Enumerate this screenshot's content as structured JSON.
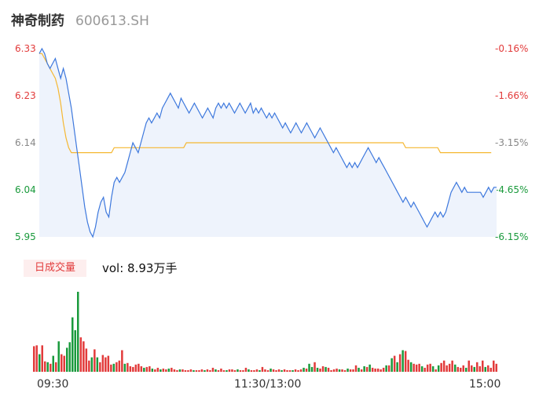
{
  "stock": {
    "name": "神奇制药",
    "code": "600613.SH"
  },
  "price_axis": {
    "left_labels": [
      "6.33",
      "6.23",
      "6.14",
      "6.04",
      "5.95"
    ],
    "right_labels": [
      "-0.16%",
      "-1.66%",
      "-3.15%",
      "-4.65%",
      "-6.15%"
    ],
    "up_color": "#e23b3b",
    "neutral_color": "#888888",
    "down_color": "#1a9a3c"
  },
  "volume": {
    "badge": "日成交量",
    "text": "vol: 8.93万手"
  },
  "time_labels": [
    "09:30",
    "11:30/13:00",
    "15:00"
  ],
  "chart_data": {
    "type": "line",
    "ylim": [
      5.95,
      6.33
    ],
    "series": [
      {
        "values": [
          6.32,
          6.33,
          6.32,
          6.3,
          6.29,
          6.3,
          6.31,
          6.29,
          6.27,
          6.29,
          6.27,
          6.24,
          6.21,
          6.17,
          6.13,
          6.09,
          6.05,
          6.01,
          5.98,
          5.96,
          5.95,
          5.97,
          6.0,
          6.02,
          6.03,
          6.0,
          5.99,
          6.03,
          6.06,
          6.07,
          6.06,
          6.07,
          6.08,
          6.1,
          6.12,
          6.14,
          6.13,
          6.12,
          6.14,
          6.16,
          6.18,
          6.19,
          6.18,
          6.19,
          6.2,
          6.19,
          6.21,
          6.22,
          6.23,
          6.24,
          6.23,
          6.22,
          6.21,
          6.23,
          6.22,
          6.21,
          6.2,
          6.21,
          6.22,
          6.21,
          6.2,
          6.19,
          6.2,
          6.21,
          6.2,
          6.19,
          6.21,
          6.22,
          6.21,
          6.22,
          6.21,
          6.22,
          6.21,
          6.2,
          6.21,
          6.22,
          6.21,
          6.2,
          6.21,
          6.22,
          6.2,
          6.21,
          6.2,
          6.21,
          6.2,
          6.19,
          6.2,
          6.19,
          6.2,
          6.19,
          6.18,
          6.17,
          6.18,
          6.17,
          6.16,
          6.17,
          6.18,
          6.17,
          6.16,
          6.17,
          6.18,
          6.17,
          6.16,
          6.15,
          6.16,
          6.17,
          6.16,
          6.15,
          6.14,
          6.13,
          6.12,
          6.13,
          6.12,
          6.11,
          6.1,
          6.09,
          6.1,
          6.09,
          6.1,
          6.09,
          6.1,
          6.11,
          6.12,
          6.13,
          6.12,
          6.11,
          6.1,
          6.11,
          6.1,
          6.09,
          6.08,
          6.07,
          6.06,
          6.05,
          6.04,
          6.03,
          6.02,
          6.03,
          6.02,
          6.01,
          6.02,
          6.01,
          6.0,
          5.99,
          5.98,
          5.97,
          5.98,
          5.99,
          6.0,
          5.99,
          6.0,
          5.99,
          6.0,
          6.02,
          6.04,
          6.05,
          6.06,
          6.05,
          6.04,
          6.05,
          6.04,
          6.04,
          6.04,
          6.04,
          6.04,
          6.04,
          6.03,
          6.04,
          6.05,
          6.04,
          6.05,
          6.05
        ]
      },
      {
        "values": [
          6.32,
          6.32,
          6.31,
          6.3,
          6.29,
          6.28,
          6.27,
          6.25,
          6.22,
          6.18,
          6.15,
          6.13,
          6.12,
          6.12,
          6.12,
          6.12,
          6.12,
          6.12,
          6.12,
          6.12,
          6.12,
          6.12,
          6.12,
          6.12,
          6.12,
          6.12,
          6.12,
          6.12,
          6.13,
          6.13,
          6.13,
          6.13,
          6.13,
          6.13,
          6.13,
          6.13,
          6.13,
          6.13,
          6.13,
          6.13,
          6.13,
          6.13,
          6.13,
          6.13,
          6.13,
          6.13,
          6.13,
          6.13,
          6.13,
          6.13,
          6.13,
          6.13,
          6.13,
          6.13,
          6.13,
          6.14,
          6.14,
          6.14,
          6.14,
          6.14,
          6.14,
          6.14,
          6.14,
          6.14,
          6.14,
          6.14,
          6.14,
          6.14,
          6.14,
          6.14,
          6.14,
          6.14,
          6.14,
          6.14,
          6.14,
          6.14,
          6.14,
          6.14,
          6.14,
          6.14,
          6.14,
          6.14,
          6.14,
          6.14,
          6.14,
          6.14,
          6.14,
          6.14,
          6.14,
          6.14,
          6.14,
          6.14,
          6.14,
          6.14,
          6.14,
          6.14,
          6.14,
          6.14,
          6.14,
          6.14,
          6.14,
          6.14,
          6.14,
          6.14,
          6.14,
          6.14,
          6.14,
          6.14,
          6.14,
          6.14,
          6.14,
          6.14,
          6.14,
          6.14,
          6.14,
          6.14,
          6.14,
          6.14,
          6.14,
          6.14,
          6.14,
          6.14,
          6.14,
          6.14,
          6.14,
          6.14,
          6.14,
          6.14,
          6.14,
          6.14,
          6.14,
          6.14,
          6.14,
          6.14,
          6.14,
          6.14,
          6.14,
          6.13,
          6.13,
          6.13,
          6.13,
          6.13,
          6.13,
          6.13,
          6.13,
          6.13,
          6.13,
          6.13,
          6.13,
          6.13,
          6.12,
          6.12,
          6.12,
          6.12,
          6.12,
          6.12,
          6.12,
          6.12,
          6.12,
          6.12,
          6.12,
          6.12,
          6.12,
          6.12,
          6.12,
          6.12,
          6.12,
          6.12,
          6.12,
          6.12
        ]
      }
    ],
    "volume_bars": [
      {
        "v": 0.32,
        "up": 1
      },
      {
        "v": 0.33,
        "up": 1
      },
      {
        "v": 0.22,
        "up": 0
      },
      {
        "v": 0.33,
        "up": 1
      },
      {
        "v": 0.13,
        "up": 1
      },
      {
        "v": 0.12,
        "up": 0
      },
      {
        "v": 0.1,
        "up": 1
      },
      {
        "v": 0.2,
        "up": 0
      },
      {
        "v": 0.12,
        "up": 1
      },
      {
        "v": 0.38,
        "up": 0
      },
      {
        "v": 0.22,
        "up": 1
      },
      {
        "v": 0.2,
        "up": 1
      },
      {
        "v": 0.3,
        "up": 0
      },
      {
        "v": 0.37,
        "up": 0
      },
      {
        "v": 0.68,
        "up": 0
      },
      {
        "v": 0.52,
        "up": 0
      },
      {
        "v": 1.0,
        "up": 0
      },
      {
        "v": 0.43,
        "up": 1
      },
      {
        "v": 0.38,
        "up": 1
      },
      {
        "v": 0.29,
        "up": 1
      },
      {
        "v": 0.14,
        "up": 1
      },
      {
        "v": 0.18,
        "up": 0
      },
      {
        "v": 0.28,
        "up": 1
      },
      {
        "v": 0.18,
        "up": 0
      },
      {
        "v": 0.12,
        "up": 1
      },
      {
        "v": 0.21,
        "up": 1
      },
      {
        "v": 0.18,
        "up": 1
      },
      {
        "v": 0.2,
        "up": 1
      },
      {
        "v": 0.09,
        "up": 1
      },
      {
        "v": 0.1,
        "up": 0
      },
      {
        "v": 0.12,
        "up": 1
      },
      {
        "v": 0.14,
        "up": 1
      },
      {
        "v": 0.27,
        "up": 1
      },
      {
        "v": 0.1,
        "up": 0
      },
      {
        "v": 0.11,
        "up": 1
      },
      {
        "v": 0.07,
        "up": 1
      },
      {
        "v": 0.06,
        "up": 1
      },
      {
        "v": 0.09,
        "up": 1
      },
      {
        "v": 0.1,
        "up": 1
      },
      {
        "v": 0.07,
        "up": 1
      },
      {
        "v": 0.05,
        "up": 0
      },
      {
        "v": 0.06,
        "up": 1
      },
      {
        "v": 0.07,
        "up": 1
      },
      {
        "v": 0.04,
        "up": 0
      },
      {
        "v": 0.03,
        "up": 1
      },
      {
        "v": 0.05,
        "up": 1
      },
      {
        "v": 0.03,
        "up": 0
      },
      {
        "v": 0.04,
        "up": 1
      },
      {
        "v": 0.03,
        "up": 1
      },
      {
        "v": 0.04,
        "up": 0
      },
      {
        "v": 0.05,
        "up": 1
      },
      {
        "v": 0.03,
        "up": 1
      },
      {
        "v": 0.02,
        "up": 1
      },
      {
        "v": 0.03,
        "up": 0
      },
      {
        "v": 0.03,
        "up": 1
      },
      {
        "v": 0.02,
        "up": 1
      },
      {
        "v": 0.02,
        "up": 1
      },
      {
        "v": 0.03,
        "up": 1
      },
      {
        "v": 0.02,
        "up": 0
      },
      {
        "v": 0.02,
        "up": 1
      },
      {
        "v": 0.02,
        "up": 1
      },
      {
        "v": 0.03,
        "up": 1
      },
      {
        "v": 0.02,
        "up": 0
      },
      {
        "v": 0.03,
        "up": 1
      },
      {
        "v": 0.02,
        "up": 1
      },
      {
        "v": 0.05,
        "up": 1
      },
      {
        "v": 0.03,
        "up": 0
      },
      {
        "v": 0.02,
        "up": 1
      },
      {
        "v": 0.04,
        "up": 1
      },
      {
        "v": 0.02,
        "up": 1
      },
      {
        "v": 0.02,
        "up": 0
      },
      {
        "v": 0.03,
        "up": 1
      },
      {
        "v": 0.03,
        "up": 1
      },
      {
        "v": 0.02,
        "up": 1
      },
      {
        "v": 0.03,
        "up": 0
      },
      {
        "v": 0.02,
        "up": 1
      },
      {
        "v": 0.02,
        "up": 1
      },
      {
        "v": 0.05,
        "up": 1
      },
      {
        "v": 0.03,
        "up": 0
      },
      {
        "v": 0.02,
        "up": 1
      },
      {
        "v": 0.02,
        "up": 1
      },
      {
        "v": 0.03,
        "up": 1
      },
      {
        "v": 0.02,
        "up": 0
      },
      {
        "v": 0.06,
        "up": 1
      },
      {
        "v": 0.03,
        "up": 1
      },
      {
        "v": 0.02,
        "up": 1
      },
      {
        "v": 0.04,
        "up": 0
      },
      {
        "v": 0.03,
        "up": 1
      },
      {
        "v": 0.02,
        "up": 1
      },
      {
        "v": 0.03,
        "up": 1
      },
      {
        "v": 0.02,
        "up": 0
      },
      {
        "v": 0.03,
        "up": 1
      },
      {
        "v": 0.02,
        "up": 1
      },
      {
        "v": 0.02,
        "up": 1
      },
      {
        "v": 0.02,
        "up": 0
      },
      {
        "v": 0.03,
        "up": 1
      },
      {
        "v": 0.02,
        "up": 1
      },
      {
        "v": 0.03,
        "up": 1
      },
      {
        "v": 0.05,
        "up": 0
      },
      {
        "v": 0.04,
        "up": 1
      },
      {
        "v": 0.1,
        "up": 0
      },
      {
        "v": 0.06,
        "up": 0
      },
      {
        "v": 0.12,
        "up": 1
      },
      {
        "v": 0.05,
        "up": 0
      },
      {
        "v": 0.04,
        "up": 1
      },
      {
        "v": 0.07,
        "up": 1
      },
      {
        "v": 0.06,
        "up": 0
      },
      {
        "v": 0.05,
        "up": 1
      },
      {
        "v": 0.02,
        "up": 1
      },
      {
        "v": 0.03,
        "up": 1
      },
      {
        "v": 0.04,
        "up": 1
      },
      {
        "v": 0.03,
        "up": 0
      },
      {
        "v": 0.03,
        "up": 1
      },
      {
        "v": 0.02,
        "up": 1
      },
      {
        "v": 0.04,
        "up": 0
      },
      {
        "v": 0.03,
        "up": 1
      },
      {
        "v": 0.03,
        "up": 1
      },
      {
        "v": 0.08,
        "up": 1
      },
      {
        "v": 0.05,
        "up": 0
      },
      {
        "v": 0.03,
        "up": 1
      },
      {
        "v": 0.07,
        "up": 0
      },
      {
        "v": 0.06,
        "up": 1
      },
      {
        "v": 0.09,
        "up": 0
      },
      {
        "v": 0.05,
        "up": 1
      },
      {
        "v": 0.04,
        "up": 1
      },
      {
        "v": 0.04,
        "up": 1
      },
      {
        "v": 0.03,
        "up": 1
      },
      {
        "v": 0.05,
        "up": 1
      },
      {
        "v": 0.08,
        "up": 0
      },
      {
        "v": 0.08,
        "up": 1
      },
      {
        "v": 0.17,
        "up": 0
      },
      {
        "v": 0.2,
        "up": 1
      },
      {
        "v": 0.12,
        "up": 0
      },
      {
        "v": 0.22,
        "up": 1
      },
      {
        "v": 0.27,
        "up": 0
      },
      {
        "v": 0.26,
        "up": 1
      },
      {
        "v": 0.15,
        "up": 1
      },
      {
        "v": 0.12,
        "up": 0
      },
      {
        "v": 0.1,
        "up": 1
      },
      {
        "v": 0.09,
        "up": 1
      },
      {
        "v": 0.1,
        "up": 1
      },
      {
        "v": 0.07,
        "up": 0
      },
      {
        "v": 0.05,
        "up": 1
      },
      {
        "v": 0.09,
        "up": 1
      },
      {
        "v": 0.1,
        "up": 1
      },
      {
        "v": 0.07,
        "up": 0
      },
      {
        "v": 0.03,
        "up": 1
      },
      {
        "v": 0.08,
        "up": 0
      },
      {
        "v": 0.11,
        "up": 1
      },
      {
        "v": 0.14,
        "up": 1
      },
      {
        "v": 0.08,
        "up": 1
      },
      {
        "v": 0.1,
        "up": 1
      },
      {
        "v": 0.14,
        "up": 1
      },
      {
        "v": 0.09,
        "up": 0
      },
      {
        "v": 0.06,
        "up": 1
      },
      {
        "v": 0.05,
        "up": 1
      },
      {
        "v": 0.08,
        "up": 1
      },
      {
        "v": 0.05,
        "up": 0
      },
      {
        "v": 0.14,
        "up": 1
      },
      {
        "v": 0.08,
        "up": 1
      },
      {
        "v": 0.06,
        "up": 0
      },
      {
        "v": 0.12,
        "up": 1
      },
      {
        "v": 0.07,
        "up": 1
      },
      {
        "v": 0.14,
        "up": 1
      },
      {
        "v": 0.06,
        "up": 0
      },
      {
        "v": 0.08,
        "up": 1
      },
      {
        "v": 0.05,
        "up": 1
      },
      {
        "v": 0.14,
        "up": 1
      },
      {
        "v": 0.1,
        "up": 1
      }
    ]
  }
}
